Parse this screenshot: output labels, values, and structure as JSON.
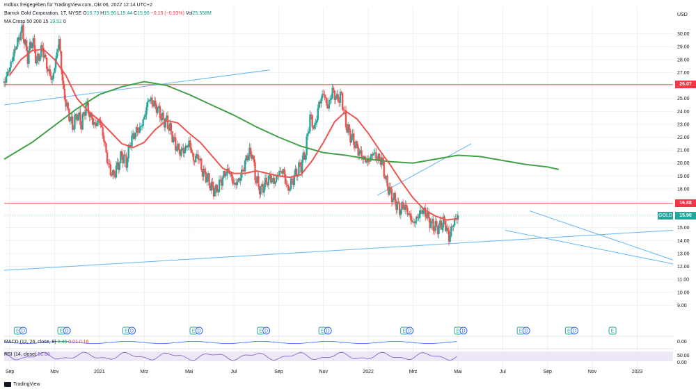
{
  "header": {
    "published": "mdbux freigegeben für TradingView.com, Okt 06, 2022 12:14 UTC+2",
    "symbol": "Barrick Gold Corporation, 1T, NYSE",
    "o_label": "O",
    "o": "15.73",
    "h_label": "H",
    "h": "15.96",
    "l_label": "L",
    "l": "15.44",
    "c_label": "C",
    "c": "15.90",
    "change": "−0.15 (−0.93%)",
    "vol_label": "Vol",
    "vol": "25.558M",
    "ma_label": "MA Cross 50 200 15",
    "ma_value": "19.52",
    "ma_zero": "0"
  },
  "brand": "TradingView",
  "price_tags": {
    "resistance_upper": "26.07",
    "resistance_lower": "16.88",
    "current": "15.90",
    "ticker": "GOLD",
    "currency": "USD"
  },
  "panes": {
    "macd_label": "MACD (12, 26, close, 9)",
    "macd_values": [
      "0.46",
      "0.01",
      "0.16"
    ],
    "macd_tick": "0.00",
    "rsi_label": "RSI (14, close)",
    "rsi_value": "56.60",
    "rsi_ticks": [
      "50.00",
      "0.00"
    ]
  },
  "event_markers": [
    {
      "type": "E",
      "month_index": 0.35
    },
    {
      "type": "D",
      "month_index": 0.6
    },
    {
      "type": "E",
      "month_index": 2.3
    },
    {
      "type": "D",
      "month_index": 2.55
    },
    {
      "type": "E",
      "month_index": 5.2
    },
    {
      "type": "D",
      "month_index": 5.45
    },
    {
      "type": "E",
      "month_index": 8.2
    },
    {
      "type": "D",
      "month_index": 8.45
    },
    {
      "type": "E",
      "month_index": 11.2
    },
    {
      "type": "D",
      "month_index": 11.45
    },
    {
      "type": "E",
      "month_index": 13.95
    },
    {
      "type": "D",
      "month_index": 14.2
    },
    {
      "type": "E",
      "month_index": 17.6
    },
    {
      "type": "D",
      "month_index": 17.85
    },
    {
      "type": "E",
      "month_index": 20.0
    },
    {
      "type": "D",
      "month_index": 20.25
    },
    {
      "type": "E",
      "month_index": 22.8
    },
    {
      "type": "D",
      "month_index": 23.05
    },
    {
      "type": "E",
      "month_index": 24.95
    },
    {
      "type": "D",
      "month_index": 25.2
    },
    {
      "type": "E",
      "month_index": 26.9
    }
  ],
  "chart_data": {
    "type": "candlestick",
    "title": "Barrick Gold Corporation, 1T, NYSE",
    "ylim": [
      8.0,
      31.0
    ],
    "xlim_month_index": [
      -0.25,
      29.6
    ],
    "y_ticks": [
      "9.00",
      "10.00",
      "11.00",
      "12.00",
      "13.00",
      "14.00",
      "15.00",
      "16.00",
      "17.00",
      "18.00",
      "19.00",
      "20.00",
      "21.00",
      "22.00",
      "23.00",
      "24.00",
      "25.00",
      "26.00",
      "27.00",
      "28.00",
      "29.00",
      "30.00"
    ],
    "x_ticks": [
      {
        "label": "Sep",
        "m": 0
      },
      {
        "label": "Nov",
        "m": 2
      },
      {
        "label": "2021",
        "m": 4
      },
      {
        "label": "Mrz",
        "m": 6
      },
      {
        "label": "Mai",
        "m": 8
      },
      {
        "label": "Jul",
        "m": 10
      },
      {
        "label": "Sep",
        "m": 12
      },
      {
        "label": "Nov",
        "m": 14
      },
      {
        "label": "2022",
        "m": 16
      },
      {
        "label": "Mrz",
        "m": 18
      },
      {
        "label": "Mai",
        "m": 20
      },
      {
        "label": "Jul",
        "m": 22
      },
      {
        "label": "Sep",
        "m": 24
      },
      {
        "label": "Nov",
        "m": 26
      },
      {
        "label": "2023",
        "m": 28
      }
    ],
    "colors": {
      "up": "#26a69a",
      "down": "#ef5350",
      "ma50": "#ef5350",
      "ma200": "#43a047",
      "trend": "#64b5f6",
      "level": "#ef5350",
      "grid": "#eef0f3"
    },
    "price_path": [
      [
        -0.25,
        26.2
      ],
      [
        0.0,
        27.4
      ],
      [
        0.3,
        29.2
      ],
      [
        0.55,
        30.3
      ],
      [
        0.8,
        28.2
      ],
      [
        1.0,
        29.6
      ],
      [
        1.2,
        27.8
      ],
      [
        1.45,
        28.9
      ],
      [
        1.7,
        27.2
      ],
      [
        1.9,
        26.4
      ],
      [
        2.1,
        28.5
      ],
      [
        2.2,
        29.5
      ],
      [
        2.4,
        25.4
      ],
      [
        2.6,
        24.0
      ],
      [
        2.8,
        22.8
      ],
      [
        3.0,
        23.8
      ],
      [
        3.2,
        23.0
      ],
      [
        3.4,
        24.5
      ],
      [
        3.6,
        23.6
      ],
      [
        3.8,
        22.9
      ],
      [
        4.0,
        23.4
      ],
      [
        4.2,
        21.8
      ],
      [
        4.4,
        19.8
      ],
      [
        4.6,
        19.0
      ],
      [
        4.8,
        19.7
      ],
      [
        5.0,
        20.6
      ],
      [
        5.2,
        20.1
      ],
      [
        5.4,
        21.7
      ],
      [
        5.6,
        22.4
      ],
      [
        5.8,
        22.6
      ],
      [
        6.0,
        23.5
      ],
      [
        6.2,
        25.0
      ],
      [
        6.4,
        24.6
      ],
      [
        6.6,
        24.2
      ],
      [
        6.8,
        23.4
      ],
      [
        7.0,
        23.2
      ],
      [
        7.2,
        22.4
      ],
      [
        7.4,
        21.3
      ],
      [
        7.6,
        20.9
      ],
      [
        7.8,
        21.0
      ],
      [
        8.0,
        21.6
      ],
      [
        8.2,
        20.2
      ],
      [
        8.4,
        20.6
      ],
      [
        8.6,
        19.3
      ],
      [
        8.8,
        18.9
      ],
      [
        9.0,
        18.1
      ],
      [
        9.2,
        17.8
      ],
      [
        9.4,
        18.5
      ],
      [
        9.6,
        19.2
      ],
      [
        9.8,
        19.4
      ],
      [
        10.0,
        18.3
      ],
      [
        10.2,
        18.6
      ],
      [
        10.4,
        19.4
      ],
      [
        10.6,
        20.6
      ],
      [
        10.8,
        20.8
      ],
      [
        11.0,
        18.6
      ],
      [
        11.2,
        17.9
      ],
      [
        11.4,
        18.4
      ],
      [
        11.6,
        18.9
      ],
      [
        11.8,
        18.5
      ],
      [
        12.0,
        19.2
      ],
      [
        12.2,
        19.4
      ],
      [
        12.4,
        17.9
      ],
      [
        12.6,
        18.6
      ],
      [
        12.8,
        19.3
      ],
      [
        13.0,
        19.8
      ],
      [
        13.2,
        20.9
      ],
      [
        13.4,
        23.6
      ],
      [
        13.6,
        22.6
      ],
      [
        13.8,
        24.6
      ],
      [
        14.0,
        25.4
      ],
      [
        14.2,
        24.3
      ],
      [
        14.4,
        25.6
      ],
      [
        14.6,
        24.9
      ],
      [
        14.8,
        25.2
      ],
      [
        15.0,
        23.0
      ],
      [
        15.2,
        22.1
      ],
      [
        15.4,
        21.5
      ],
      [
        15.6,
        20.8
      ],
      [
        15.8,
        20.3
      ],
      [
        16.0,
        20.1
      ],
      [
        16.2,
        20.8
      ],
      [
        16.4,
        20.4
      ],
      [
        16.6,
        20.2
      ],
      [
        16.8,
        18.5
      ],
      [
        17.0,
        17.6
      ],
      [
        17.2,
        17.0
      ],
      [
        17.4,
        16.4
      ],
      [
        17.6,
        16.7
      ],
      [
        17.8,
        16.1
      ],
      [
        18.0,
        15.3
      ],
      [
        18.2,
        15.8
      ],
      [
        18.4,
        16.4
      ],
      [
        18.6,
        16.0
      ],
      [
        18.8,
        15.3
      ],
      [
        19.0,
        15.0
      ],
      [
        19.2,
        15.1
      ],
      [
        19.4,
        15.5
      ],
      [
        19.6,
        14.2
      ],
      [
        19.8,
        15.4
      ],
      [
        20.0,
        15.9
      ]
    ],
    "ma50_path": [
      [
        0.0,
        26.8
      ],
      [
        0.5,
        28.0
      ],
      [
        1.0,
        28.7
      ],
      [
        1.5,
        28.8
      ],
      [
        2.0,
        28.0
      ],
      [
        2.5,
        26.8
      ],
      [
        3.0,
        25.0
      ],
      [
        3.5,
        24.0
      ],
      [
        4.0,
        23.3
      ],
      [
        4.5,
        22.4
      ],
      [
        5.0,
        21.5
      ],
      [
        5.5,
        21.2
      ],
      [
        6.0,
        21.6
      ],
      [
        6.5,
        22.6
      ],
      [
        7.0,
        23.3
      ],
      [
        7.5,
        23.1
      ],
      [
        8.0,
        22.3
      ],
      [
        8.5,
        21.6
      ],
      [
        9.0,
        20.6
      ],
      [
        9.5,
        19.6
      ],
      [
        10.0,
        19.2
      ],
      [
        10.5,
        19.2
      ],
      [
        11.0,
        19.4
      ],
      [
        11.5,
        19.2
      ],
      [
        12.0,
        19.0
      ],
      [
        12.5,
        18.9
      ],
      [
        13.0,
        19.1
      ],
      [
        13.5,
        20.2
      ],
      [
        14.0,
        21.6
      ],
      [
        14.5,
        23.2
      ],
      [
        15.0,
        24.0
      ],
      [
        15.5,
        23.4
      ],
      [
        16.0,
        22.3
      ],
      [
        16.5,
        21.0
      ],
      [
        17.0,
        19.8
      ],
      [
        17.5,
        18.5
      ],
      [
        18.0,
        17.3
      ],
      [
        18.5,
        16.4
      ],
      [
        19.0,
        15.9
      ],
      [
        19.5,
        15.6
      ],
      [
        20.0,
        15.7
      ]
    ],
    "ma200_path": [
      [
        -0.25,
        20.3
      ],
      [
        1.0,
        21.6
      ],
      [
        2.0,
        22.9
      ],
      [
        3.0,
        24.2
      ],
      [
        4.0,
        25.3
      ],
      [
        5.0,
        25.9
      ],
      [
        6.0,
        26.3
      ],
      [
        7.0,
        26.0
      ],
      [
        8.0,
        25.3
      ],
      [
        9.0,
        24.5
      ],
      [
        10.0,
        23.7
      ],
      [
        11.0,
        22.8
      ],
      [
        12.0,
        22.0
      ],
      [
        13.0,
        21.3
      ],
      [
        14.0,
        20.8
      ],
      [
        15.0,
        20.6
      ],
      [
        16.0,
        20.3
      ],
      [
        17.0,
        20.1
      ],
      [
        18.0,
        20.0
      ],
      [
        19.0,
        20.3
      ],
      [
        20.0,
        20.6
      ],
      [
        21.0,
        20.5
      ],
      [
        22.0,
        20.2
      ],
      [
        23.0,
        19.9
      ],
      [
        24.0,
        19.7
      ],
      [
        24.5,
        19.5
      ]
    ],
    "trend_lines": [
      {
        "from": [
          -0.25,
          24.5
        ],
        "to": [
          11.6,
          27.2
        ]
      },
      {
        "from": [
          -0.25,
          11.7
        ],
        "to": [
          29.6,
          14.8
        ]
      },
      {
        "from": [
          16.4,
          17.5
        ],
        "to": [
          20.6,
          21.5
        ]
      },
      {
        "from": [
          22.1,
          14.8
        ],
        "to": [
          29.6,
          12.2
        ]
      },
      {
        "from": [
          23.2,
          16.3
        ],
        "to": [
          29.6,
          12.5
        ]
      }
    ],
    "horizontal_levels": [
      26.07,
      16.88
    ],
    "last_price": 15.9
  }
}
